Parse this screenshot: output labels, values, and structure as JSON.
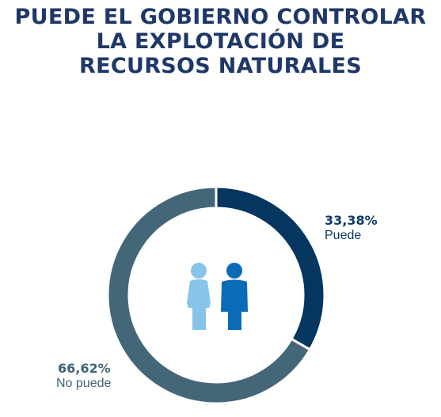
{
  "title_lines": [
    "PUEDE EL GOBIERNO CONTROLAR",
    "LA EXPLOTACIÓN DE",
    "RECURSOS NATURALES"
  ],
  "chart_data": {
    "type": "pie",
    "style": "donut",
    "title": "PUEDE EL GOBIERNO CONTROLAR LA EXPLOTACIÓN DE RECURSOS NATURALES",
    "slices": [
      {
        "label": "Puede",
        "value": 33.38,
        "value_text": "33,38%",
        "color": "#05365f",
        "label_color": "#0b3a66"
      },
      {
        "label": "No puede",
        "value": 66.62,
        "value_text": "66,62%",
        "color": "#446679",
        "label_color": "#3f6375"
      }
    ],
    "center_icon_colors": {
      "female": "#86c4ea",
      "male": "#0a6cb7"
    }
  }
}
